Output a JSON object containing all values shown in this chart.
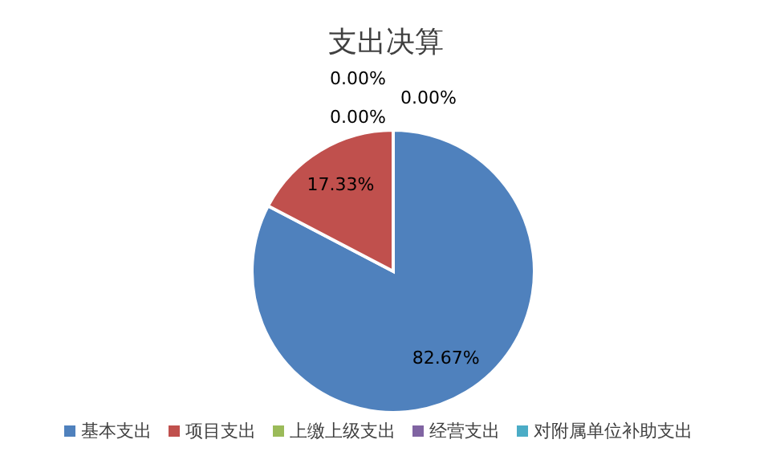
{
  "chart_data": {
    "type": "pie",
    "title": "支出决算",
    "categories": [
      "基本支出",
      "项目支出",
      "上缴上级支出",
      "经营支出",
      "对附属单位补助支出"
    ],
    "values": [
      82.67,
      17.33,
      0,
      0,
      0
    ],
    "colors": [
      "#4f81bd",
      "#c0504d",
      "#9bbb59",
      "#8064a2",
      "#4bacc6"
    ],
    "value_labels": [
      "82.67%",
      "17.33%",
      "0.00%",
      "0.00%",
      "0.00%"
    ],
    "legend": "bottom"
  }
}
